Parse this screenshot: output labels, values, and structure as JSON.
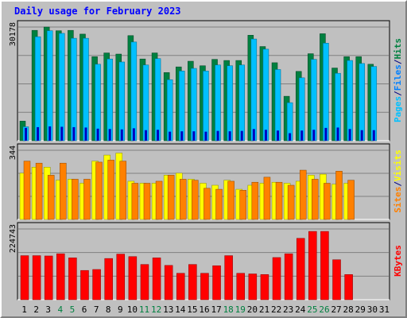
{
  "title": "Daily usage for February 2023",
  "colors": {
    "background": "#c0c0c0",
    "plot_background": "#c0c0c0",
    "grid": "#808080",
    "title": "#0000ff",
    "hits": "#008040",
    "files": "#0080ff",
    "pages": "#00c0ff",
    "visits": "#ffff00",
    "sites": "#ff8000",
    "kbytes": "#ff0000",
    "weekday_label": "#000000",
    "weekend_label": "#008040"
  },
  "chart_data": [
    {
      "type": "bar",
      "panel": "hits_files_pages",
      "categories": [
        "1",
        "2",
        "3",
        "4",
        "5",
        "6",
        "7",
        "8",
        "9",
        "10",
        "11",
        "12",
        "13",
        "14",
        "15",
        "16",
        "17",
        "18",
        "19",
        "20",
        "21",
        "22",
        "23",
        "24",
        "25",
        "26",
        "27",
        "28",
        "29",
        "30",
        "31"
      ],
      "weekend_days": [
        "4",
        "5",
        "11",
        "12",
        "18",
        "19",
        "25",
        "26"
      ],
      "ymax_label": "30178",
      "ylim": [
        0,
        30178
      ],
      "grid": true,
      "series": [
        {
          "name": "Hits",
          "values": [
            5200,
            29300,
            30178,
            29200,
            29300,
            28300,
            22300,
            23300,
            23000,
            27900,
            21700,
            23300,
            18100,
            19600,
            21100,
            19900,
            21600,
            21300,
            21300,
            28000,
            25000,
            20700,
            11800,
            18400,
            23100,
            28400,
            19300,
            22300,
            22300,
            20300,
            0
          ]
        },
        {
          "name": "Files",
          "values": [
            3700,
            27600,
            29200,
            28500,
            27200,
            27200,
            20300,
            21700,
            20900,
            26200,
            20100,
            21800,
            16200,
            18500,
            19200,
            18500,
            20100,
            19900,
            20100,
            27000,
            24300,
            18900,
            10100,
            16700,
            21600,
            25900,
            17900,
            21300,
            20500,
            19700,
            0
          ]
        },
        {
          "name": "Pages",
          "values": [
            3400,
            3600,
            3800,
            3700,
            3600,
            3500,
            3200,
            3100,
            3000,
            3300,
            2800,
            2900,
            2400,
            2500,
            2500,
            2400,
            2600,
            2500,
            2600,
            3100,
            2900,
            2700,
            2000,
            2700,
            2900,
            3400,
            3500,
            3100,
            2800,
            2800,
            0
          ]
        }
      ]
    },
    {
      "type": "bar",
      "panel": "visits_sites",
      "categories": [
        "1",
        "2",
        "3",
        "4",
        "5",
        "6",
        "7",
        "8",
        "9",
        "10",
        "11",
        "12",
        "13",
        "14",
        "15",
        "16",
        "17",
        "18",
        "19",
        "20",
        "21",
        "22",
        "23",
        "24",
        "25",
        "26",
        "27",
        "28",
        "29",
        "30",
        "31"
      ],
      "ymax_label": "344",
      "ylim": [
        0,
        344
      ],
      "grid": true,
      "series": [
        {
          "name": "Visits",
          "values": [
            230,
            260,
            260,
            195,
            200,
            180,
            290,
            320,
            330,
            190,
            180,
            180,
            220,
            230,
            200,
            180,
            170,
            195,
            150,
            170,
            180,
            185,
            180,
            190,
            220,
            225,
            175,
            180,
            0,
            0,
            0
          ]
        },
        {
          "name": "Sites",
          "values": [
            290,
            280,
            220,
            280,
            200,
            200,
            285,
            295,
            290,
            180,
            180,
            190,
            220,
            200,
            195,
            155,
            150,
            190,
            145,
            185,
            210,
            185,
            170,
            245,
            200,
            180,
            240,
            195,
            0,
            0,
            0
          ]
        }
      ]
    },
    {
      "type": "bar",
      "panel": "kbytes",
      "categories": [
        "1",
        "2",
        "3",
        "4",
        "5",
        "6",
        "7",
        "8",
        "9",
        "10",
        "11",
        "12",
        "13",
        "14",
        "15",
        "16",
        "17",
        "18",
        "19",
        "20",
        "21",
        "22",
        "23",
        "24",
        "25",
        "26",
        "27",
        "28",
        "29",
        "30",
        "31"
      ],
      "ymax_label": "224743",
      "ylim": [
        0,
        224743
      ],
      "grid": true,
      "series": [
        {
          "name": "KBytes",
          "values": [
            140000,
            140000,
            139000,
            146000,
            133000,
            93000,
            96000,
            131000,
            145000,
            137000,
            112000,
            133000,
            109000,
            84000,
            112000,
            84000,
            108000,
            140000,
            84000,
            82000,
            80000,
            134000,
            146000,
            195000,
            217000,
            217000,
            127000,
            80000,
            0,
            0,
            0
          ]
        }
      ]
    }
  ],
  "legend": {
    "top_labels": [
      {
        "text": "Pages",
        "color": "#00c0ff"
      },
      {
        "text": "/",
        "color": "#000080"
      },
      {
        "text": "Files",
        "color": "#0080ff"
      },
      {
        "text": "/",
        "color": "#000080"
      },
      {
        "text": "Hits",
        "color": "#008040"
      }
    ],
    "mid_labels": [
      {
        "text": "Sites",
        "color": "#ff8000"
      },
      {
        "text": "/",
        "color": "#000080"
      },
      {
        "text": "Visits",
        "color": "#ffff00"
      }
    ],
    "bottom_labels": [
      {
        "text": "KBytes",
        "color": "#ff0000"
      }
    ]
  }
}
